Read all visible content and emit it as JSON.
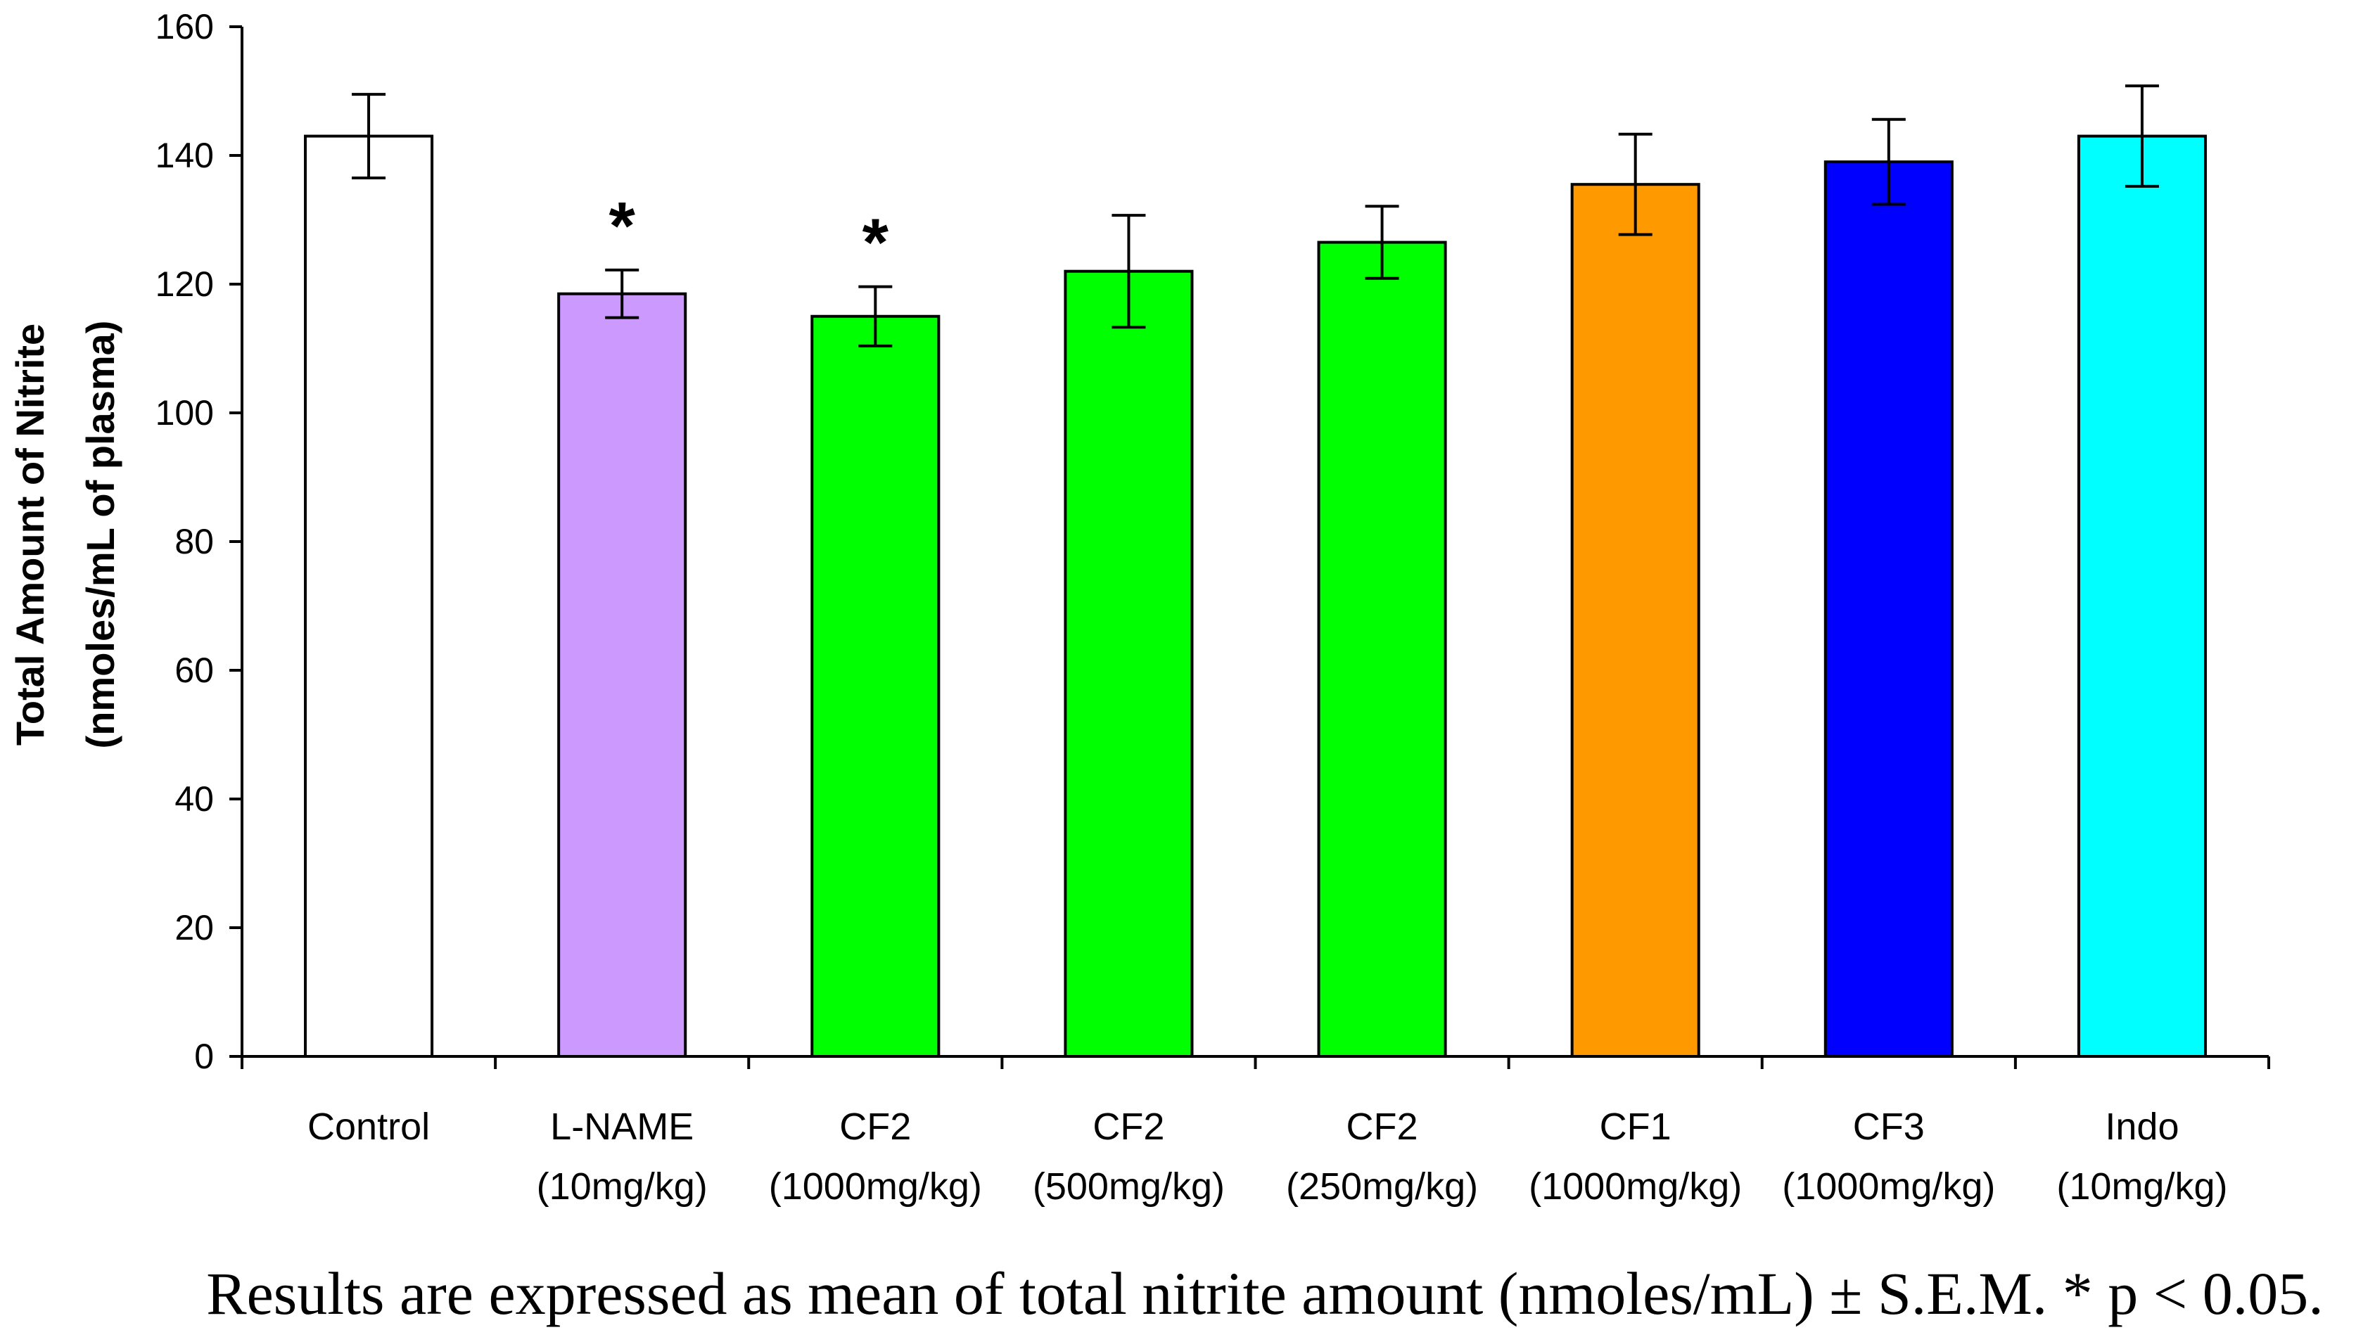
{
  "chart_data": {
    "type": "bar",
    "title": "",
    "xlabel": "",
    "ylabel_line1": "Total Amount of Nitrite",
    "ylabel_line2": "(nmoles/mL of plasma)",
    "ylim": [
      0,
      160
    ],
    "yticks": [
      0,
      20,
      40,
      60,
      80,
      100,
      120,
      140,
      160
    ],
    "grid": false,
    "categories": [
      {
        "name": "Control",
        "dose": ""
      },
      {
        "name": "L-NAME",
        "dose": "(10mg/kg)"
      },
      {
        "name": "CF2",
        "dose": "(1000mg/kg)"
      },
      {
        "name": "CF2",
        "dose": "(500mg/kg)"
      },
      {
        "name": "CF2",
        "dose": "(250mg/kg)"
      },
      {
        "name": "CF1",
        "dose": "(1000mg/kg)"
      },
      {
        "name": "CF3",
        "dose": "(1000mg/kg)"
      },
      {
        "name": "Indo",
        "dose": "(10mg/kg)"
      }
    ],
    "values": [
      143,
      118.5,
      115,
      122,
      126.5,
      135.5,
      139,
      143
    ],
    "errors": [
      6.5,
      3.7,
      4.6,
      8.7,
      5.6,
      7.8,
      6.6,
      7.8
    ],
    "colors": [
      "#ffffff",
      "#cc99ff",
      "#00ff00",
      "#00ff00",
      "#00ff00",
      "#ff9900",
      "#0000ff",
      "#00ffff"
    ],
    "significance": [
      "",
      "*",
      "*",
      "",
      "",
      "",
      "",
      ""
    ],
    "caption": "Results are expressed as mean of total nitrite amount (nmoles/mL) ± S.E.M. * p < 0.05."
  }
}
